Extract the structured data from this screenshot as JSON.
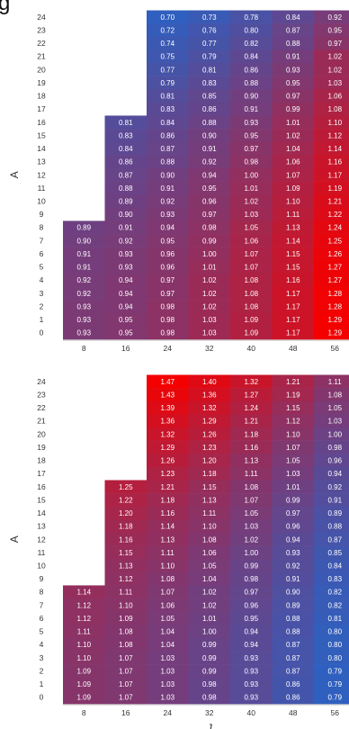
{
  "caption": "g",
  "chart_data": [
    {
      "type": "heatmap",
      "xlabel": "",
      "ylabel": "A",
      "x_ticks": [
        "8",
        "16",
        "24",
        "32",
        "40",
        "48",
        "56"
      ],
      "y_ticks": [
        "0",
        "1",
        "2",
        "3",
        "4",
        "5",
        "6",
        "7",
        "8",
        "9",
        "10",
        "11",
        "12",
        "13",
        "14",
        "15",
        "16",
        "17",
        "18",
        "19",
        "20",
        "21",
        "22",
        "23",
        "24"
      ],
      "colorscale": {
        "low": "#2f5fbf",
        "high": "#f40000",
        "vmin": 0.7,
        "vmax": 1.29
      },
      "rows": [
        {
          "y": "24",
          "values": [
            null,
            null,
            "0.70",
            "0.73",
            "0.78",
            "0.84",
            "0.92"
          ]
        },
        {
          "y": "23",
          "values": [
            null,
            null,
            "0.72",
            "0.76",
            "0.80",
            "0.87",
            "0.95"
          ]
        },
        {
          "y": "22",
          "values": [
            null,
            null,
            "0.74",
            "0.77",
            "0.82",
            "0.88",
            "0.97"
          ]
        },
        {
          "y": "21",
          "values": [
            null,
            null,
            "0.75",
            "0.79",
            "0.84",
            "0.91",
            "1.02"
          ]
        },
        {
          "y": "20",
          "values": [
            null,
            null,
            "0.77",
            "0.81",
            "0.86",
            "0.93",
            "1.02"
          ]
        },
        {
          "y": "19",
          "values": [
            null,
            null,
            "0.79",
            "0.83",
            "0.88",
            "0.95",
            "1.03"
          ]
        },
        {
          "y": "18",
          "values": [
            null,
            null,
            "0.81",
            "0.85",
            "0.90",
            "0.97",
            "1.06"
          ]
        },
        {
          "y": "17",
          "values": [
            null,
            null,
            "0.83",
            "0.86",
            "0.91",
            "0.99",
            "1.08"
          ]
        },
        {
          "y": "16",
          "values": [
            null,
            "0.81",
            "0.84",
            "0.88",
            "0.93",
            "1.01",
            "1.10"
          ]
        },
        {
          "y": "15",
          "values": [
            null,
            "0.83",
            "0.86",
            "0.90",
            "0.95",
            "1.02",
            "1.12"
          ]
        },
        {
          "y": "14",
          "values": [
            null,
            "0.84",
            "0.87",
            "0.91",
            "0.97",
            "1.04",
            "1.14"
          ]
        },
        {
          "y": "13",
          "values": [
            null,
            "0.86",
            "0.88",
            "0.92",
            "0.98",
            "1.06",
            "1.16"
          ]
        },
        {
          "y": "12",
          "values": [
            null,
            "0.87",
            "0.90",
            "0.94",
            "1.00",
            "1.07",
            "1.17"
          ]
        },
        {
          "y": "11",
          "values": [
            null,
            "0.88",
            "0.91",
            "0.95",
            "1.01",
            "1.09",
            "1.19"
          ]
        },
        {
          "y": "10",
          "values": [
            null,
            "0.89",
            "0.92",
            "0.96",
            "1.02",
            "1.10",
            "1.21"
          ]
        },
        {
          "y": "9",
          "values": [
            null,
            "0.90",
            "0.93",
            "0.97",
            "1.03",
            "1.11",
            "1.22"
          ]
        },
        {
          "y": "8",
          "values": [
            "0.89",
            "0.91",
            "0.94",
            "0.98",
            "1.05",
            "1.13",
            "1.24"
          ]
        },
        {
          "y": "7",
          "values": [
            "0.90",
            "0.92",
            "0.95",
            "0.99",
            "1.06",
            "1.14",
            "1.25"
          ]
        },
        {
          "y": "6",
          "values": [
            "0.91",
            "0.93",
            "0.96",
            "1.00",
            "1.07",
            "1.15",
            "1.26"
          ]
        },
        {
          "y": "5",
          "values": [
            "0.91",
            "0.93",
            "0.96",
            "1.01",
            "1.07",
            "1.15",
            "1.27"
          ]
        },
        {
          "y": "4",
          "values": [
            "0.92",
            "0.94",
            "0.97",
            "1.02",
            "1.08",
            "1.16",
            "1.27"
          ]
        },
        {
          "y": "3",
          "values": [
            "0.92",
            "0.94",
            "0.97",
            "1.02",
            "1.08",
            "1.17",
            "1.28"
          ]
        },
        {
          "y": "2",
          "values": [
            "0.93",
            "0.94",
            "0.98",
            "1.02",
            "1.08",
            "1.17",
            "1.28"
          ]
        },
        {
          "y": "1",
          "values": [
            "0.93",
            "0.95",
            "0.98",
            "1.03",
            "1.09",
            "1.17",
            "1.29"
          ]
        },
        {
          "y": "0",
          "values": [
            "0.93",
            "0.95",
            "0.98",
            "1.03",
            "1.09",
            "1.17",
            "1.29"
          ]
        }
      ]
    },
    {
      "type": "heatmap",
      "xlabel": "J",
      "ylabel": "A",
      "x_ticks": [
        "8",
        "16",
        "24",
        "32",
        "40",
        "48",
        "56"
      ],
      "y_ticks": [
        "0",
        "1",
        "2",
        "3",
        "4",
        "5",
        "6",
        "7",
        "8",
        "9",
        "10",
        "11",
        "12",
        "13",
        "14",
        "15",
        "16",
        "17",
        "18",
        "19",
        "20",
        "21",
        "22",
        "23",
        "24"
      ],
      "colorscale": {
        "low": "#2f5fbf",
        "high": "#f40000",
        "vmin": 0.79,
        "vmax": 1.47
      },
      "rows": [
        {
          "y": "24",
          "values": [
            null,
            null,
            "1.47",
            "1.40",
            "1.32",
            "1.21",
            "1.11"
          ]
        },
        {
          "y": "23",
          "values": [
            null,
            null,
            "1.43",
            "1.36",
            "1.27",
            "1.19",
            "1.08"
          ]
        },
        {
          "y": "22",
          "values": [
            null,
            null,
            "1.39",
            "1.32",
            "1.24",
            "1.15",
            "1.05"
          ]
        },
        {
          "y": "21",
          "values": [
            null,
            null,
            "1.36",
            "1.29",
            "1.21",
            "1.12",
            "1.03"
          ]
        },
        {
          "y": "20",
          "values": [
            null,
            null,
            "1.32",
            "1.26",
            "1.18",
            "1.10",
            "1.00"
          ]
        },
        {
          "y": "19",
          "values": [
            null,
            null,
            "1.29",
            "1.23",
            "1.16",
            "1.07",
            "0.98"
          ]
        },
        {
          "y": "18",
          "values": [
            null,
            null,
            "1.26",
            "1.20",
            "1.13",
            "1.05",
            "0.96"
          ]
        },
        {
          "y": "17",
          "values": [
            null,
            null,
            "1.23",
            "1.18",
            "1.11",
            "1.03",
            "0.94"
          ]
        },
        {
          "y": "16",
          "values": [
            null,
            "1.25",
            "1.21",
            "1.15",
            "1.08",
            "1.01",
            "0.92"
          ]
        },
        {
          "y": "15",
          "values": [
            null,
            "1.22",
            "1.18",
            "1.13",
            "1.07",
            "0.99",
            "0.91"
          ]
        },
        {
          "y": "14",
          "values": [
            null,
            "1.20",
            "1.16",
            "1.11",
            "1.05",
            "0.97",
            "0.89"
          ]
        },
        {
          "y": "13",
          "values": [
            null,
            "1.18",
            "1.14",
            "1.10",
            "1.03",
            "0.96",
            "0.88"
          ]
        },
        {
          "y": "12",
          "values": [
            null,
            "1.16",
            "1.13",
            "1.08",
            "1.02",
            "0.94",
            "0.87"
          ]
        },
        {
          "y": "11",
          "values": [
            null,
            "1.15",
            "1.11",
            "1.06",
            "1.00",
            "0.93",
            "0.85"
          ]
        },
        {
          "y": "10",
          "values": [
            null,
            "1.13",
            "1.10",
            "1.05",
            "0.99",
            "0.92",
            "0.84"
          ]
        },
        {
          "y": "9",
          "values": [
            null,
            "1.12",
            "1.08",
            "1.04",
            "0.98",
            "0.91",
            "0.83"
          ]
        },
        {
          "y": "8",
          "values": [
            "1.14",
            "1.11",
            "1.07",
            "1.02",
            "0.97",
            "0.90",
            "0.82"
          ]
        },
        {
          "y": "7",
          "values": [
            "1.12",
            "1.10",
            "1.06",
            "1.02",
            "0.96",
            "0.89",
            "0.82"
          ]
        },
        {
          "y": "6",
          "values": [
            "1.12",
            "1.09",
            "1.05",
            "1.01",
            "0.95",
            "0.88",
            "0.81"
          ]
        },
        {
          "y": "5",
          "values": [
            "1.11",
            "1.08",
            "1.04",
            "1.00",
            "0.94",
            "0.88",
            "0.80"
          ]
        },
        {
          "y": "4",
          "values": [
            "1.10",
            "1.08",
            "1.04",
            "0.99",
            "0.94",
            "0.87",
            "0.80"
          ]
        },
        {
          "y": "3",
          "values": [
            "1.10",
            "1.07",
            "1.03",
            "0.99",
            "0.93",
            "0.87",
            "0.80"
          ]
        },
        {
          "y": "2",
          "values": [
            "1.09",
            "1.07",
            "1.03",
            "0.99",
            "0.93",
            "0.87",
            "0.79"
          ]
        },
        {
          "y": "1",
          "values": [
            "1.09",
            "1.07",
            "1.03",
            "0.98",
            "0.93",
            "0.86",
            "0.79"
          ]
        },
        {
          "y": "0",
          "values": [
            "1.09",
            "1.07",
            "1.03",
            "0.98",
            "0.93",
            "0.86",
            "0.79"
          ]
        }
      ]
    }
  ]
}
